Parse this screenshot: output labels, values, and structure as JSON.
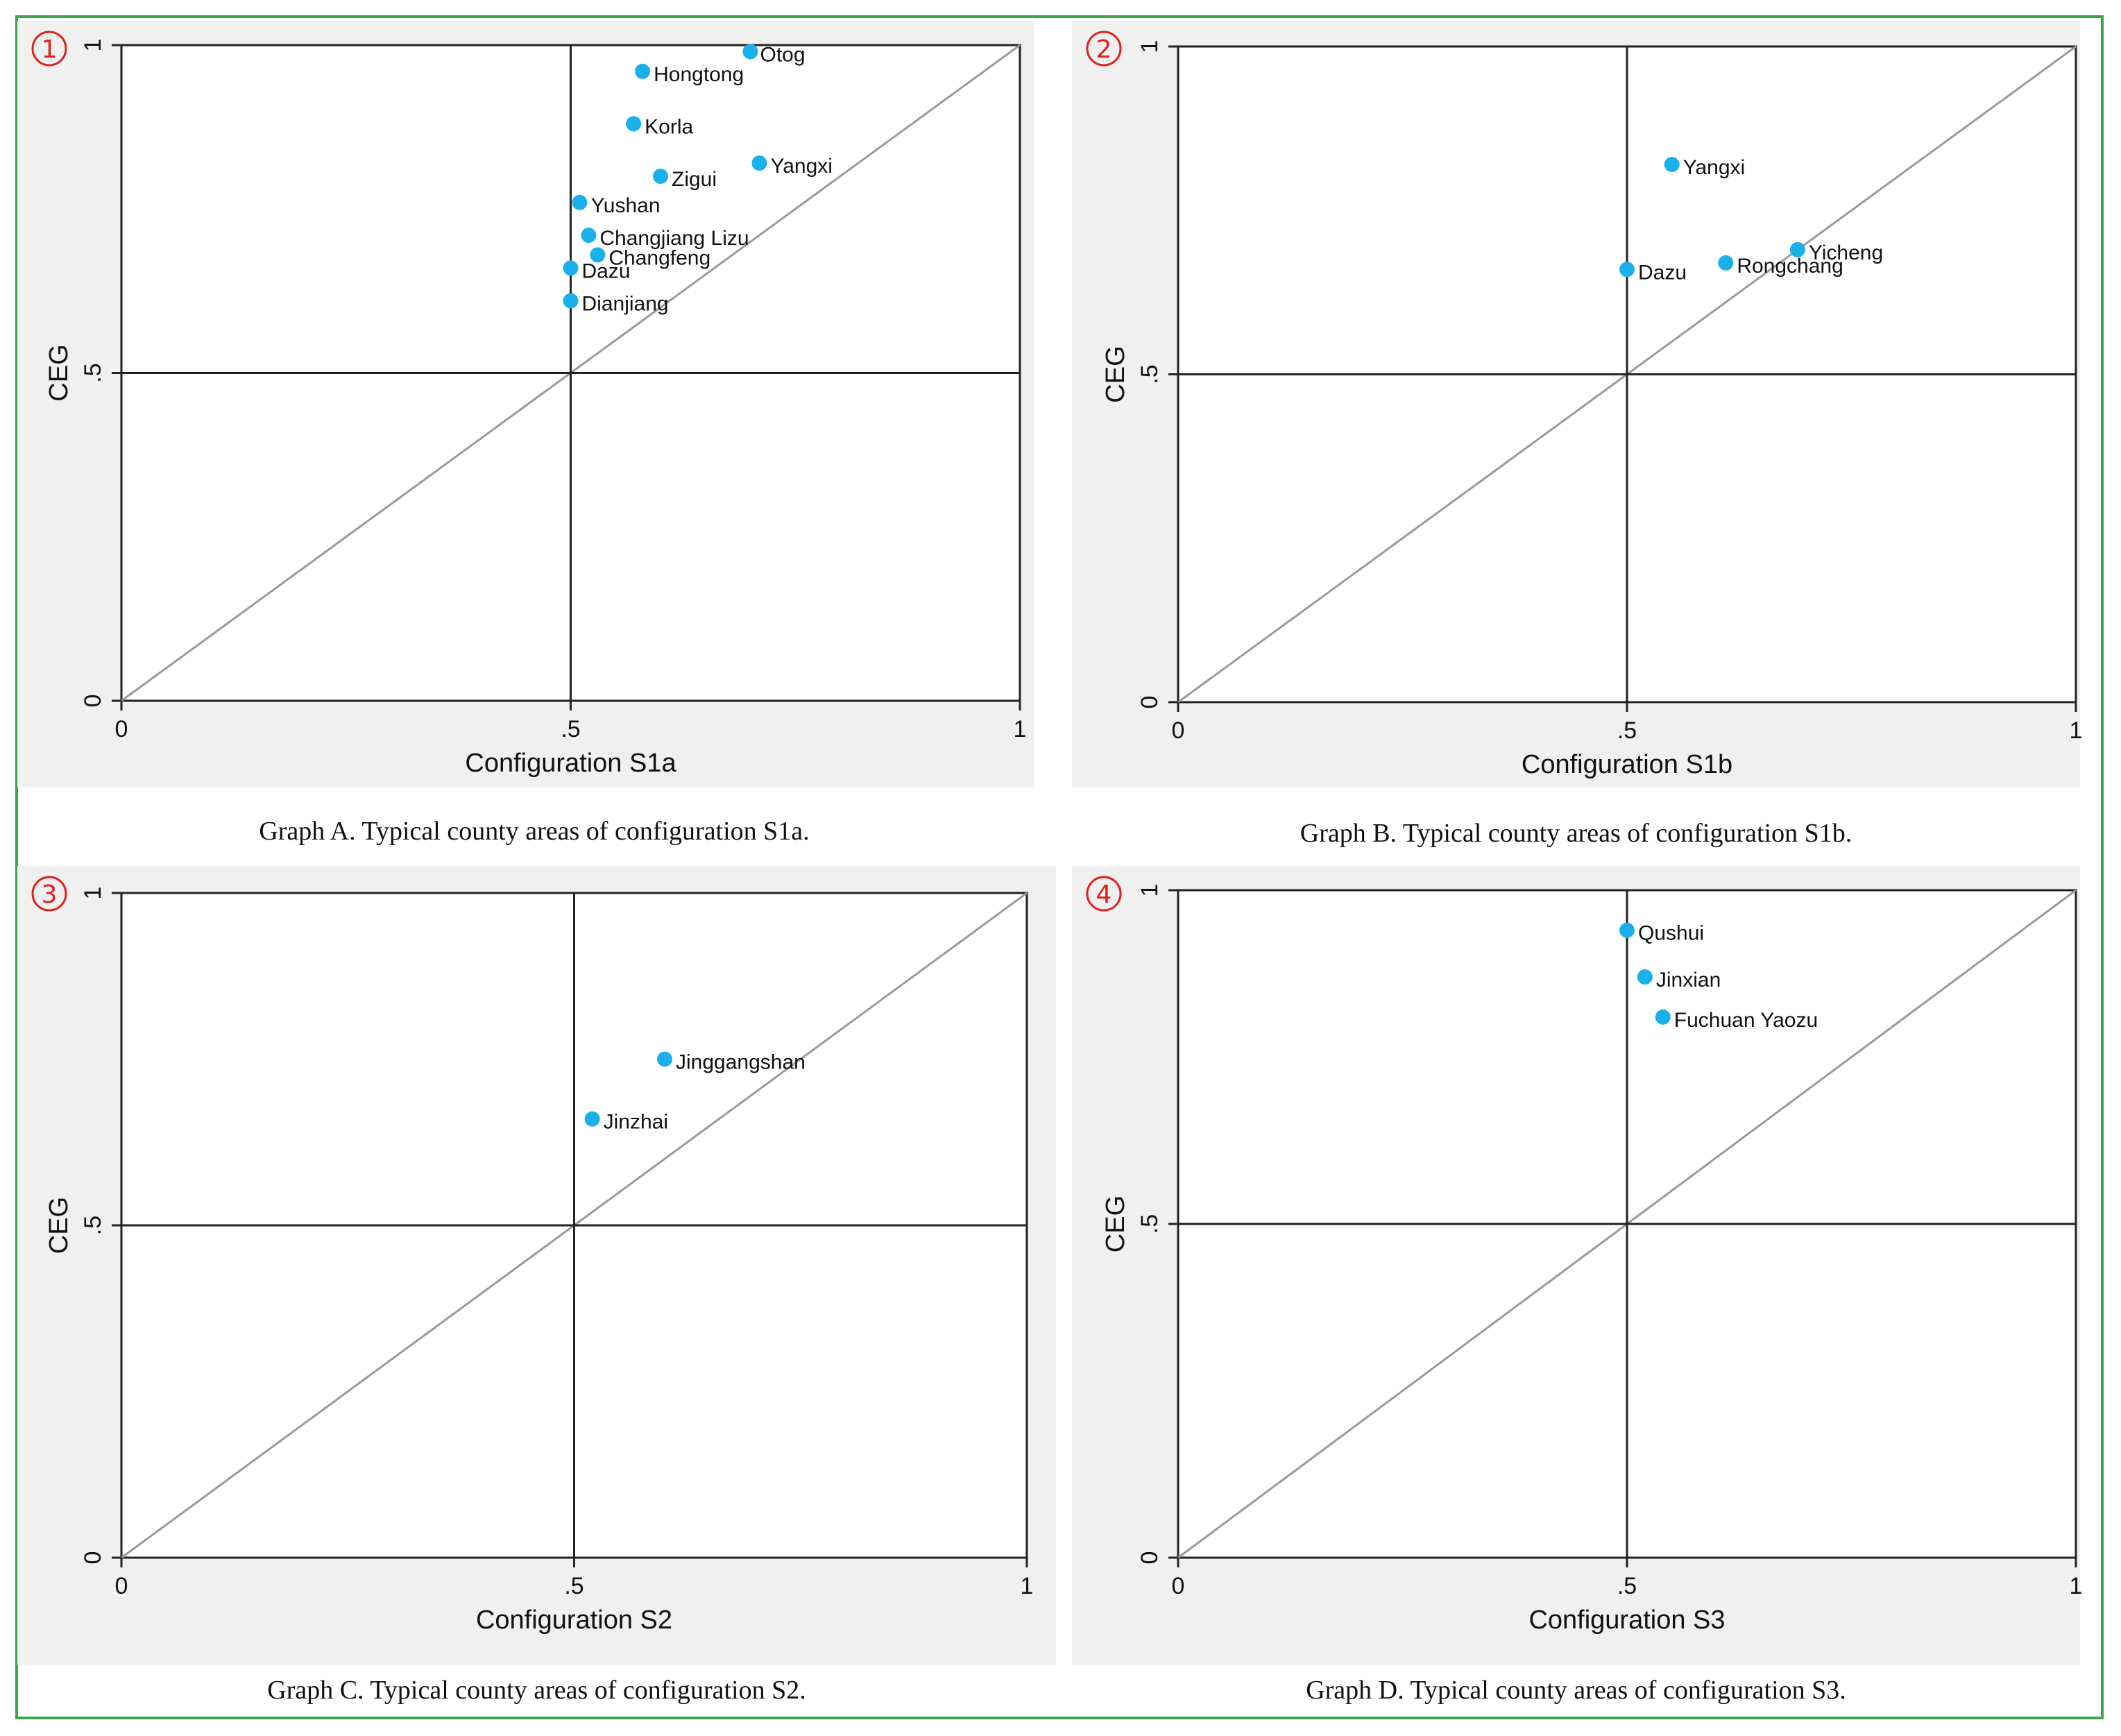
{
  "chart_data": [
    {
      "type": "scatter",
      "marker": "①",
      "xlabel": "Configuration S1a",
      "ylabel": "CEG",
      "xlim": [
        0,
        1
      ],
      "ylim": [
        0,
        1
      ],
      "xticks": [
        "0",
        ".5",
        "1"
      ],
      "yticks": [
        "0",
        ".5",
        "1"
      ],
      "reference_lines": {
        "x": 0.5,
        "y": 0.5,
        "diagonal": true
      },
      "points": [
        {
          "label": "Otog",
          "x": 0.7,
          "y": 0.99
        },
        {
          "label": "Hongtong",
          "x": 0.58,
          "y": 0.96
        },
        {
          "label": "Korla",
          "x": 0.57,
          "y": 0.88
        },
        {
          "label": "Yangxi",
          "x": 0.71,
          "y": 0.82
        },
        {
          "label": "Zigui",
          "x": 0.6,
          "y": 0.8
        },
        {
          "label": "Yushan",
          "x": 0.51,
          "y": 0.76
        },
        {
          "label": "Changjiang Lizu",
          "x": 0.52,
          "y": 0.71
        },
        {
          "label": "Changfeng",
          "x": 0.53,
          "y": 0.68
        },
        {
          "label": "Dazu",
          "x": 0.5,
          "y": 0.66
        },
        {
          "label": "Dianjiang",
          "x": 0.5,
          "y": 0.61
        }
      ],
      "caption": "Graph A. Typical county areas of configuration S1a."
    },
    {
      "type": "scatter",
      "marker": "②",
      "xlabel": "Configuration S1b",
      "ylabel": "CEG",
      "xlim": [
        0,
        1
      ],
      "ylim": [
        0,
        1
      ],
      "xticks": [
        "0",
        ".5",
        "1"
      ],
      "yticks": [
        "0",
        ".5",
        "1"
      ],
      "reference_lines": {
        "x": 0.5,
        "y": 0.5,
        "diagonal": true
      },
      "points": [
        {
          "label": "Yangxi",
          "x": 0.55,
          "y": 0.82
        },
        {
          "label": "Yicheng",
          "x": 0.69,
          "y": 0.69
        },
        {
          "label": "Rongchang",
          "x": 0.61,
          "y": 0.67
        },
        {
          "label": "Dazu",
          "x": 0.5,
          "y": 0.66
        }
      ],
      "caption": "Graph B. Typical county areas of configuration S1b."
    },
    {
      "type": "scatter",
      "marker": "③",
      "xlabel": "Configuration S2",
      "ylabel": "CEG",
      "xlim": [
        0,
        1
      ],
      "ylim": [
        0,
        1
      ],
      "xticks": [
        "0",
        ".5",
        "1"
      ],
      "yticks": [
        "0",
        ".5",
        "1"
      ],
      "reference_lines": {
        "x": 0.5,
        "y": 0.5,
        "diagonal": true
      },
      "points": [
        {
          "label": "Jinggangshan",
          "x": 0.6,
          "y": 0.75
        },
        {
          "label": "Jinzhai",
          "x": 0.52,
          "y": 0.66
        }
      ],
      "caption": "Graph C. Typical county areas of configuration S2."
    },
    {
      "type": "scatter",
      "marker": "④",
      "xlabel": "Configuration S3",
      "ylabel": "CEG",
      "xlim": [
        0,
        1
      ],
      "ylim": [
        0,
        1
      ],
      "xticks": [
        "0",
        ".5",
        "1"
      ],
      "yticks": [
        "0",
        ".5",
        "1"
      ],
      "reference_lines": {
        "x": 0.5,
        "y": 0.5,
        "diagonal": true
      },
      "points": [
        {
          "label": "Qushui",
          "x": 0.5,
          "y": 0.94
        },
        {
          "label": "Jinxian",
          "x": 0.52,
          "y": 0.87
        },
        {
          "label": "Fuchuan Yaozu",
          "x": 0.54,
          "y": 0.81
        }
      ],
      "caption": "Graph D. Typical county areas of configuration S3."
    }
  ],
  "colors": {
    "point": "#1ab0ea",
    "diagonal": "#9a9a9a",
    "axis": "#222222",
    "panel_bg": "#f0f0f0",
    "marker": "#e0201b",
    "frame": "#3aa84a"
  }
}
